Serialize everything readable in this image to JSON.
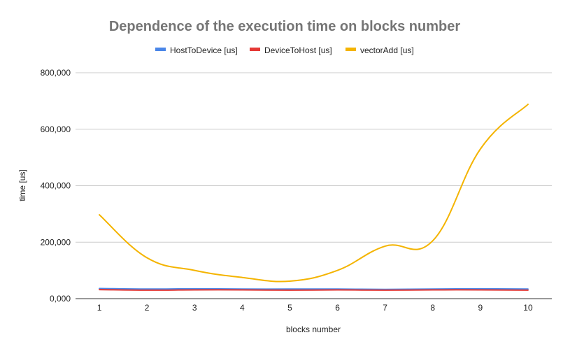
{
  "chart_data": {
    "type": "line",
    "title": "Dependence of the execution time on blocks number",
    "xlabel": "blocks number",
    "ylabel": "time [us]",
    "x": [
      1,
      2,
      3,
      4,
      5,
      6,
      7,
      8,
      9,
      10
    ],
    "ylim": [
      0,
      800000
    ],
    "yticks": [
      0,
      200000,
      400000,
      600000,
      800000
    ],
    "ytick_labels": [
      "0,000",
      "200,000",
      "400,000",
      "600,000",
      "800,000"
    ],
    "grid": true,
    "legend_position": "top",
    "series": [
      {
        "name": "HostToDevice [us]",
        "color": "#4a86e8",
        "values": [
          36000,
          34000,
          35000,
          34000,
          34000,
          34000,
          33000,
          34000,
          35000,
          34000
        ]
      },
      {
        "name": "DeviceToHost [us]",
        "color": "#e53935",
        "values": [
          32000,
          30000,
          31000,
          31000,
          30000,
          31000,
          30000,
          31000,
          31000,
          30000
        ]
      },
      {
        "name": "vectorAdd [us]",
        "color": "#f4b400",
        "values": [
          297000,
          145000,
          100000,
          75000,
          62000,
          100000,
          186000,
          205000,
          530000,
          688000
        ]
      }
    ]
  }
}
